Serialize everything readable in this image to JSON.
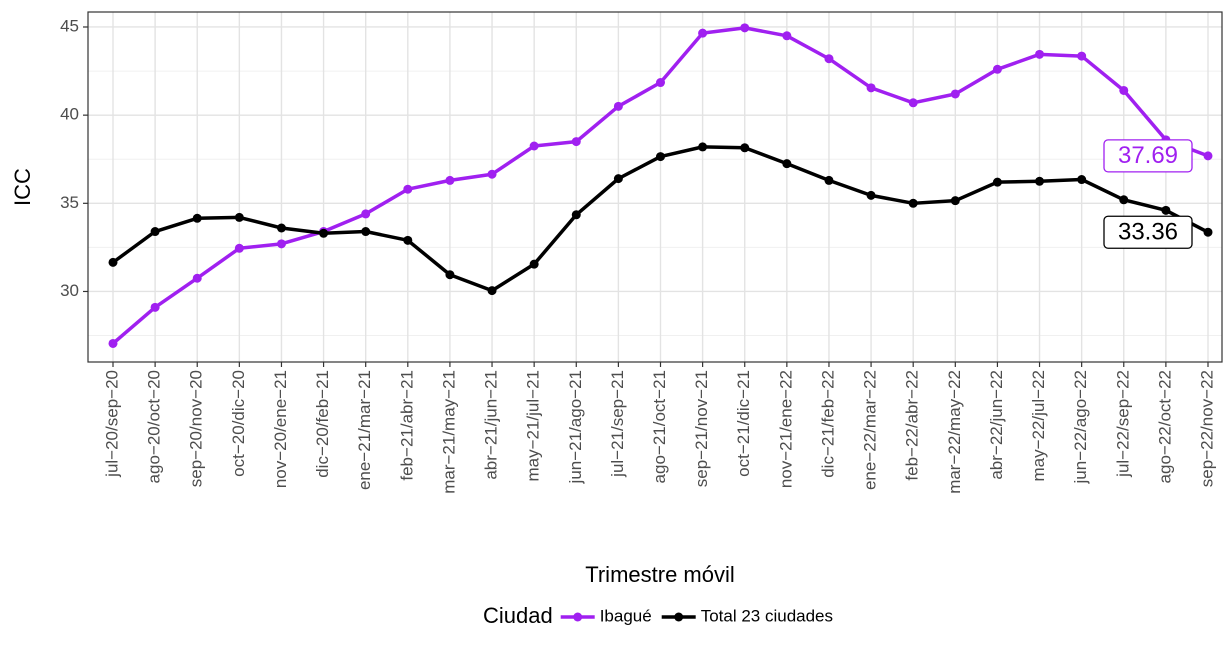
{
  "chart_data": {
    "type": "line",
    "y_label": "ICC",
    "x_label": "Trimestre móvil",
    "legend_title": "Ciudad",
    "legend_position": "bottom",
    "grid": true,
    "categories": [
      "jul−20/sep−20",
      "ago−20/oct−20",
      "sep−20/nov−20",
      "oct−20/dic−20",
      "nov−20/ene−21",
      "dic−20/feb−21",
      "ene−21/mar−21",
      "feb−21/abr−21",
      "mar−21/may−21",
      "abr−21/jun−21",
      "may−21/jul−21",
      "jun−21/ago−21",
      "jul−21/sep−21",
      "ago−21/oct−21",
      "sep−21/nov−21",
      "oct−21/dic−21",
      "nov−21/ene−22",
      "dic−21/feb−22",
      "ene−22/mar−22",
      "feb−22/abr−22",
      "mar−22/may−22",
      "abr−22/jun−22",
      "may−22/jul−22",
      "jun−22/ago−22",
      "jul−22/sep−22",
      "ago−22/oct−22",
      "sep−22/nov−22"
    ],
    "series": [
      {
        "name": "Ibagué",
        "color": "#a020f0",
        "values": [
          27.05,
          29.1,
          30.75,
          32.45,
          32.7,
          33.4,
          34.4,
          35.8,
          36.3,
          36.65,
          38.25,
          38.5,
          40.5,
          41.85,
          44.65,
          44.95,
          44.5,
          43.2,
          41.55,
          40.7,
          41.2,
          42.6,
          43.45,
          43.35,
          41.4,
          38.6,
          37.69
        ]
      },
      {
        "name": "Total 23 ciudades",
        "color": "#000000",
        "values": [
          31.65,
          33.4,
          34.15,
          34.2,
          33.6,
          33.3,
          33.4,
          32.9,
          30.95,
          30.05,
          31.55,
          34.35,
          36.4,
          37.65,
          38.2,
          38.15,
          37.25,
          36.3,
          35.45,
          35.0,
          35.15,
          36.2,
          36.25,
          36.35,
          35.2,
          34.6,
          33.36
        ]
      }
    ],
    "ylim": [
      26,
      45.85
    ],
    "yticks": [
      30,
      35,
      40,
      45
    ]
  }
}
